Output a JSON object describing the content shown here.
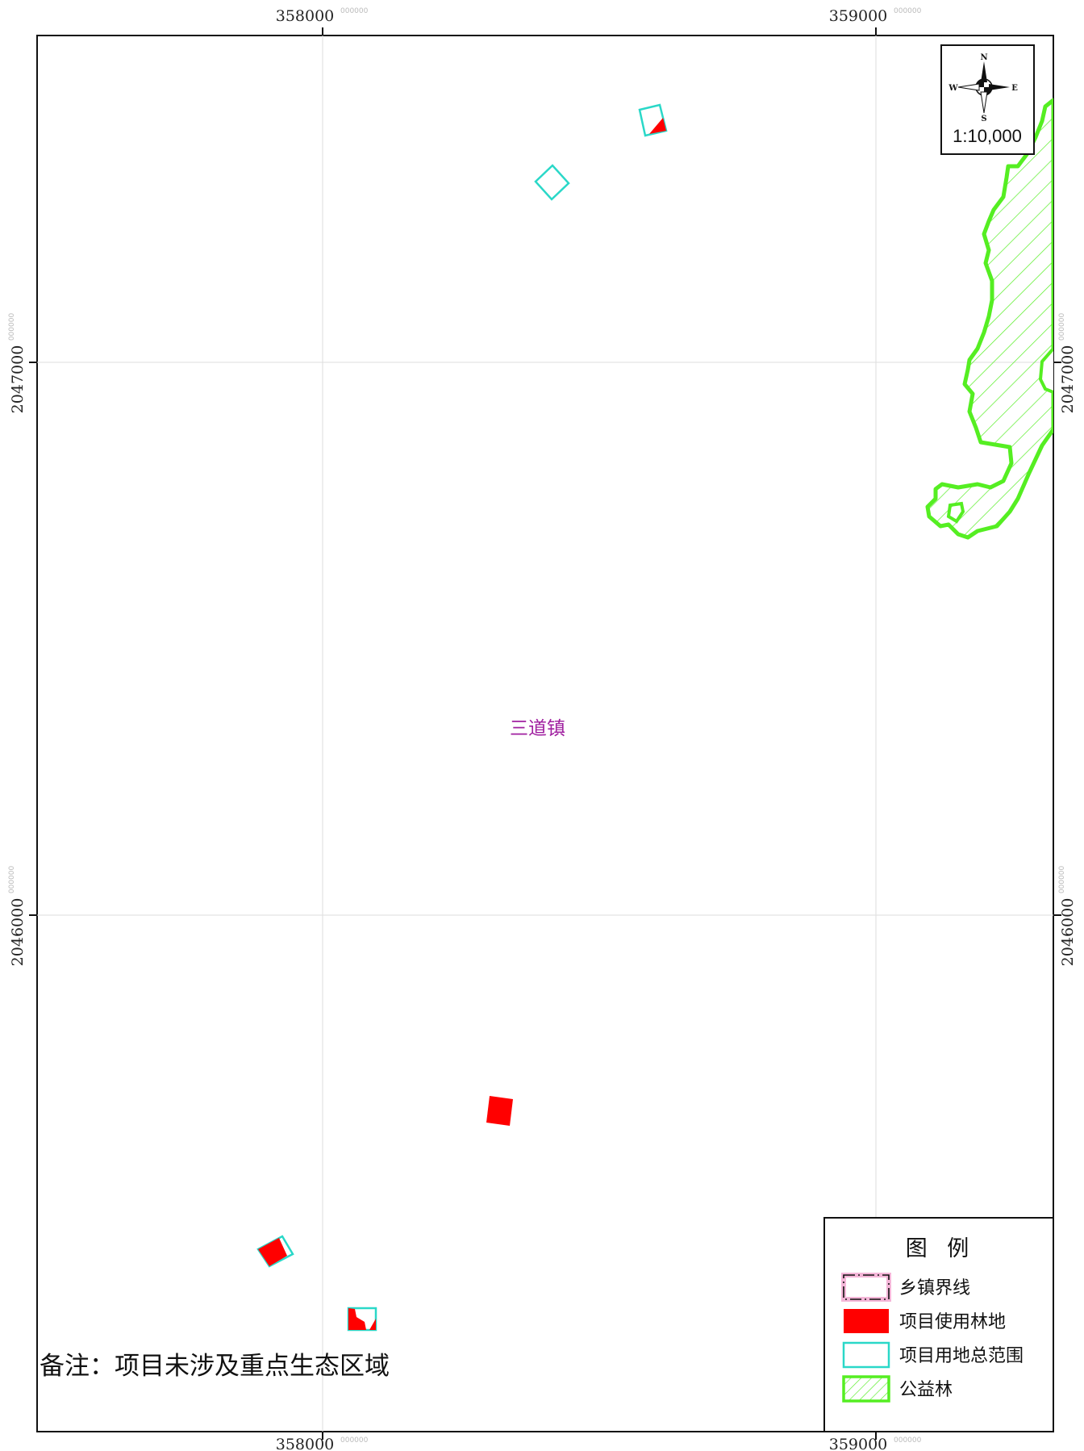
{
  "map": {
    "place_label": "三道镇",
    "note": "备注：项目未涉及重点生态区域",
    "scale": "1:10,000",
    "compass": {
      "n": "N",
      "s": "S",
      "e": "E",
      "w": "W"
    },
    "grid": {
      "x_labels": [
        "358000",
        "359000"
      ],
      "y_labels": [
        "2047000",
        "2046000"
      ],
      "sub_label": "000000"
    },
    "legend": {
      "title": "图 例",
      "items": [
        {
          "label": "乡镇界线",
          "symbol": "township-boundary-icon",
          "color": "#f4b6d8"
        },
        {
          "label": "项目使用林地",
          "symbol": "red-fill-icon",
          "color": "#ff0000"
        },
        {
          "label": "项目用地总范围",
          "symbol": "cyan-outline-icon",
          "color": "#2ad8c8"
        },
        {
          "label": "公益林",
          "symbol": "green-hatch-icon",
          "color": "#55ee22"
        }
      ]
    },
    "colors": {
      "forest_use": "#ff0000",
      "project_range": "#2ad8c8",
      "public_forest": "#55ee22",
      "place_label": "#a020a0"
    }
  }
}
